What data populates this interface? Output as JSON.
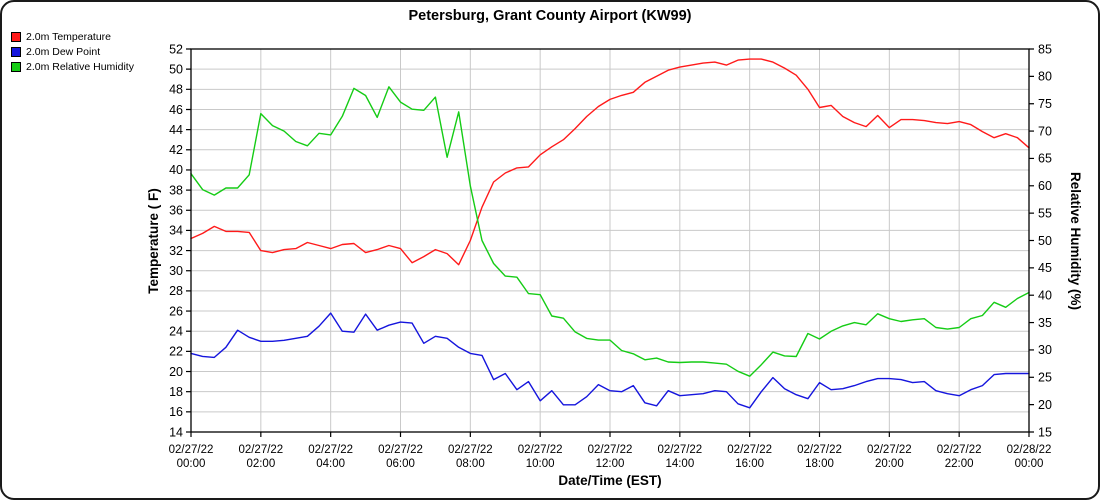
{
  "window_title": "Petersburg, Grant County Airport (KW99)",
  "chart_data": {
    "type": "line",
    "title": "Petersburg, Grant County Airport (KW99)",
    "legend_position": "top-left",
    "grid": true,
    "x_axis": {
      "label": "Date/Time (EST)",
      "start": "02/27/22 00:00",
      "end": "02/28/22 00:00",
      "sample_interval_minutes": 20,
      "tick_labels": [
        {
          "date": "02/27/22",
          "time": "00:00"
        },
        {
          "date": "02/27/22",
          "time": "02:00"
        },
        {
          "date": "02/27/22",
          "time": "04:00"
        },
        {
          "date": "02/27/22",
          "time": "06:00"
        },
        {
          "date": "02/27/22",
          "time": "08:00"
        },
        {
          "date": "02/27/22",
          "time": "10:00"
        },
        {
          "date": "02/27/22",
          "time": "12:00"
        },
        {
          "date": "02/27/22",
          "time": "14:00"
        },
        {
          "date": "02/27/22",
          "time": "16:00"
        },
        {
          "date": "02/27/22",
          "time": "18:00"
        },
        {
          "date": "02/27/22",
          "time": "20:00"
        },
        {
          "date": "02/27/22",
          "time": "22:00"
        },
        {
          "date": "02/28/22",
          "time": "00:00"
        }
      ]
    },
    "y_axis_left": {
      "label": "Temperature ( F)",
      "min": 14,
      "max": 52,
      "tick_step": 2
    },
    "y_axis_right": {
      "label": "Relative Humidity (%)",
      "min": 15,
      "max": 85,
      "tick_step": 5
    },
    "series": [
      {
        "name": "2.0m Temperature",
        "color": "#ff1a1a",
        "axis": "left",
        "values": [
          33.2,
          33.7,
          34.4,
          33.9,
          33.9,
          33.8,
          32.0,
          31.8,
          32.1,
          32.2,
          32.8,
          32.5,
          32.2,
          32.6,
          32.7,
          31.8,
          32.1,
          32.5,
          32.2,
          30.8,
          31.4,
          32.1,
          31.7,
          30.6,
          33.0,
          36.3,
          38.8,
          39.7,
          40.2,
          40.3,
          41.5,
          42.3,
          43.0,
          44.1,
          45.3,
          46.3,
          47.0,
          47.4,
          47.7,
          48.7,
          49.3,
          49.9,
          50.2,
          50.4,
          50.6,
          50.7,
          50.4,
          50.9,
          51.0,
          51.0,
          50.7,
          50.1,
          49.4,
          48.0,
          46.2,
          46.4,
          45.3,
          44.7,
          44.3,
          45.4,
          44.2,
          45.0,
          45.0,
          44.9,
          44.7,
          44.6,
          44.8,
          44.5,
          43.8,
          43.2,
          43.6,
          43.2,
          42.2
        ]
      },
      {
        "name": "2.0m Dew Point",
        "color": "#1515dd",
        "axis": "left",
        "values": [
          21.8,
          21.5,
          21.4,
          22.4,
          24.1,
          23.4,
          23.0,
          23.0,
          23.1,
          23.3,
          23.5,
          24.5,
          25.8,
          24.0,
          23.9,
          25.7,
          24.1,
          24.6,
          24.9,
          24.8,
          22.8,
          23.5,
          23.3,
          22.4,
          21.8,
          21.6,
          19.2,
          19.8,
          18.2,
          19.0,
          17.1,
          18.1,
          16.7,
          16.7,
          17.5,
          18.7,
          18.1,
          18.0,
          18.6,
          16.9,
          16.6,
          18.1,
          17.6,
          17.7,
          17.8,
          18.1,
          18.0,
          16.8,
          16.4,
          18.0,
          19.4,
          18.3,
          17.7,
          17.3,
          18.9,
          18.2,
          18.3,
          18.6,
          19.0,
          19.3,
          19.3,
          19.2,
          18.9,
          19.0,
          18.1,
          17.8,
          17.6,
          18.2,
          18.6,
          19.7,
          19.8,
          19.8,
          19.8
        ]
      },
      {
        "name": "2.0m Relative Humidity",
        "color": "#15cc15",
        "axis": "right",
        "values": [
          62.2,
          59.3,
          58.3,
          59.6,
          59.6,
          62.0,
          73.2,
          71.0,
          70.0,
          68.1,
          67.3,
          69.6,
          69.3,
          72.7,
          77.8,
          76.5,
          72.5,
          78.1,
          75.3,
          74.0,
          73.8,
          76.2,
          65.2,
          73.5,
          60.0,
          50.0,
          45.8,
          43.5,
          43.3,
          40.3,
          40.1,
          36.2,
          35.8,
          33.3,
          32.1,
          31.8,
          31.8,
          29.9,
          29.3,
          28.2,
          28.5,
          27.8,
          27.7,
          27.8,
          27.8,
          27.6,
          27.4,
          26.1,
          25.2,
          27.3,
          29.6,
          28.9,
          28.8,
          33.0,
          32.0,
          33.4,
          34.4,
          35.0,
          34.6,
          36.6,
          35.7,
          35.2,
          35.5,
          35.7,
          34.1,
          33.8,
          34.1,
          35.7,
          36.3,
          38.7,
          37.8,
          39.4,
          40.5
        ]
      }
    ],
    "colors": {
      "grid": "#c9c9c9",
      "axis": "#000000",
      "background": "#ffffff",
      "legend_swatches": {
        "temperature": "#ff0000",
        "dew_point": "#0000ff",
        "relative_humidity": "#00ff00"
      }
    }
  }
}
